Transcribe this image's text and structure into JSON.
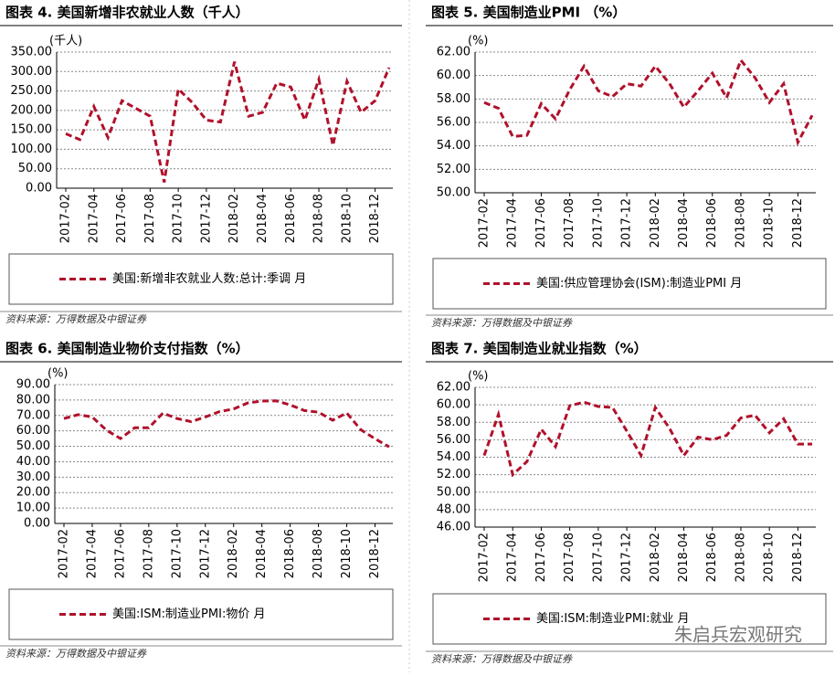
{
  "chart_data": [
    {
      "type": "line",
      "title": "图表 4. 美国新增非农就业人数（千人）",
      "y_label": "(千人)",
      "categories": [
        "2017-02",
        null,
        "2017-04",
        null,
        "2017-06",
        null,
        "2017-08",
        null,
        "2017-10",
        null,
        "2017-12",
        null,
        "2018-02",
        null,
        "2018-04",
        null,
        "2018-06",
        null,
        "2018-08",
        null,
        "2018-10",
        null,
        "2018-12",
        null
      ],
      "series": [
        {
          "name": "美国:新增非农就业人数:总计:季调  月",
          "color": "#b0112b",
          "values": [
            140,
            125,
            210,
            130,
            225,
            205,
            185,
            15,
            255,
            220,
            175,
            170,
            325,
            185,
            195,
            270,
            260,
            175,
            280,
            110,
            275,
            195,
            225,
            310
          ]
        }
      ],
      "ylim": [
        0,
        350
      ],
      "yticks": [
        {
          "value": 0,
          "label": "0.00"
        },
        {
          "value": 50,
          "label": "50.00"
        },
        {
          "value": 100,
          "label": "100.00"
        },
        {
          "value": 150,
          "label": "150.00"
        },
        {
          "value": 200,
          "label": "200.00"
        },
        {
          "value": 250,
          "label": "250.00"
        },
        {
          "value": 300,
          "label": "300.00"
        },
        {
          "value": 350,
          "label": "350.00"
        }
      ],
      "grid": true,
      "source": "资料来源：万得数据及中银证券"
    },
    {
      "type": "line",
      "title": "图表 5. 美国制造业PMI （%）",
      "y_label": "(%)",
      "categories": [
        "2017-02",
        null,
        "2017-04",
        null,
        "2017-06",
        null,
        "2017-08",
        null,
        "2017-10",
        null,
        "2017-12",
        null,
        "2018-02",
        null,
        "2018-04",
        null,
        "2018-06",
        null,
        "2018-08",
        null,
        "2018-10",
        null,
        "2018-12",
        null
      ],
      "series": [
        {
          "name": "美国:供应管理协会(ISM):制造业PMI  月",
          "color": "#b0112b",
          "values": [
            57.7,
            57.2,
            54.8,
            54.9,
            57.6,
            56.3,
            58.8,
            60.8,
            58.7,
            58.2,
            59.3,
            59.1,
            60.8,
            59.3,
            57.3,
            58.7,
            60.2,
            58.1,
            61.3,
            59.8,
            57.7,
            59.3,
            54.3,
            56.6
          ]
        }
      ],
      "ylim": [
        50,
        62
      ],
      "yticks": [
        {
          "value": 50,
          "label": "50.00"
        },
        {
          "value": 52,
          "label": "52.00"
        },
        {
          "value": 54,
          "label": "54.00"
        },
        {
          "value": 56,
          "label": "56.00"
        },
        {
          "value": 58,
          "label": "58.00"
        },
        {
          "value": 60,
          "label": "60.00"
        },
        {
          "value": 62,
          "label": "62.00"
        }
      ],
      "grid": true,
      "source": "资料来源：万得数据及中银证券"
    },
    {
      "type": "line",
      "title": "图表 6. 美国制造业物价支付指数（%）",
      "y_label": "(%)",
      "categories": [
        "2017-02",
        null,
        "2017-04",
        null,
        "2017-06",
        null,
        "2017-08",
        null,
        "2017-10",
        null,
        "2017-12",
        null,
        "2018-02",
        null,
        "2018-04",
        null,
        "2018-06",
        null,
        "2018-08",
        null,
        "2018-10",
        null,
        "2018-12",
        null
      ],
      "series": [
        {
          "name": "美国:ISM:制造业PMI:物价  月",
          "color": "#b0112b",
          "values": [
            68,
            70.5,
            69,
            60.5,
            55,
            62,
            62,
            71.5,
            68,
            66,
            69,
            72.5,
            74.2,
            78.1,
            79.3,
            79.5,
            76.8,
            73.2,
            72.1,
            66.9,
            71.6,
            60.7,
            54.9,
            49.6
          ]
        }
      ],
      "ylim": [
        0,
        90
      ],
      "yticks": [
        {
          "value": 0,
          "label": "0.00"
        },
        {
          "value": 10,
          "label": "10.00"
        },
        {
          "value": 20,
          "label": "20.00"
        },
        {
          "value": 30,
          "label": "30.00"
        },
        {
          "value": 40,
          "label": "40.00"
        },
        {
          "value": 50,
          "label": "50.00"
        },
        {
          "value": 60,
          "label": "60.00"
        },
        {
          "value": 70,
          "label": "70.00"
        },
        {
          "value": 80,
          "label": "80.00"
        },
        {
          "value": 90,
          "label": "90.00"
        }
      ],
      "grid": true,
      "source": "资料来源：万得数据及中银证券"
    },
    {
      "type": "line",
      "title": "图表 7. 美国制造业就业指数（%）",
      "y_label": "(%)",
      "categories": [
        "2017-02",
        null,
        "2017-04",
        null,
        "2017-06",
        null,
        "2017-08",
        null,
        "2017-10",
        null,
        "2017-12",
        null,
        "2018-02",
        null,
        "2018-04",
        null,
        "2018-06",
        null,
        "2018-08",
        null,
        "2018-10",
        null,
        "2018-12",
        null
      ],
      "series": [
        {
          "name": "美国:ISM:制造业PMI:就业  月",
          "color": "#b0112b",
          "values": [
            54.2,
            58.9,
            52.0,
            53.5,
            57.2,
            55.2,
            59.9,
            60.3,
            59.8,
            59.7,
            57.0,
            54.2,
            59.7,
            57.3,
            54.2,
            56.3,
            56.0,
            56.5,
            58.5,
            58.8,
            56.8,
            58.4,
            55.5,
            55.5
          ]
        }
      ],
      "ylim": [
        46,
        62
      ],
      "yticks": [
        {
          "value": 46,
          "label": "46.00"
        },
        {
          "value": 48,
          "label": "48.00"
        },
        {
          "value": 50,
          "label": "50.00"
        },
        {
          "value": 52,
          "label": "52.00"
        },
        {
          "value": 54,
          "label": "54.00"
        },
        {
          "value": 56,
          "label": "56.00"
        },
        {
          "value": 58,
          "label": "58.00"
        },
        {
          "value": 60,
          "label": "60.00"
        },
        {
          "value": 62,
          "label": "62.00"
        }
      ],
      "grid": true,
      "source": "资料来源：万得数据及中银证券"
    }
  ],
  "watermark": "朱启兵宏观研究"
}
